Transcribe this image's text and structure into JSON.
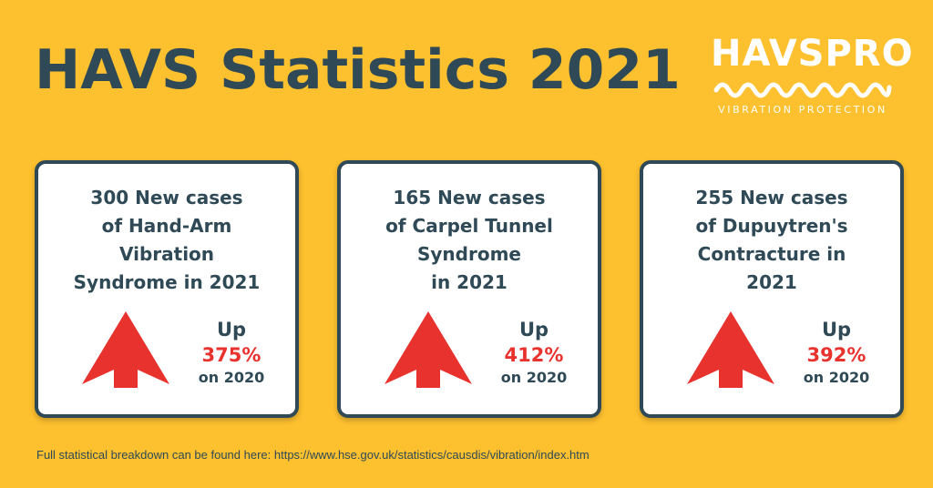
{
  "header": {
    "title": "HAVS Statistics 2021"
  },
  "logo": {
    "word": "HAVSPRO",
    "tagline": "VIBRATION PROTECTION",
    "icon": "wave-icon"
  },
  "colors": {
    "background": "#FDC02F",
    "text": "#2F4A56",
    "accent": "#E8322D",
    "card": "#FFFFFF"
  },
  "cards": [
    {
      "lines": [
        "300 New cases",
        "of Hand-Arm",
        "Vibration",
        "Syndrome in 2021"
      ],
      "up_label": "Up",
      "percent": "375%",
      "comparison": "on 2020",
      "icon": "arrow-up-icon"
    },
    {
      "lines": [
        "165 New cases",
        "of Carpel Tunnel",
        "Syndrome",
        "in 2021"
      ],
      "up_label": "Up",
      "percent": "412%",
      "comparison": "on 2020",
      "icon": "arrow-up-icon"
    },
    {
      "lines": [
        "255 New cases",
        "of Dupuytren's",
        "Contracture in",
        "2021"
      ],
      "up_label": "Up",
      "percent": "392%",
      "comparison": "on 2020",
      "icon": "arrow-up-icon"
    }
  ],
  "footer": {
    "text": "Full statistical breakdown can be found here: https://www.hse.gov.uk/statistics/causdis/vibration/index.htm"
  }
}
